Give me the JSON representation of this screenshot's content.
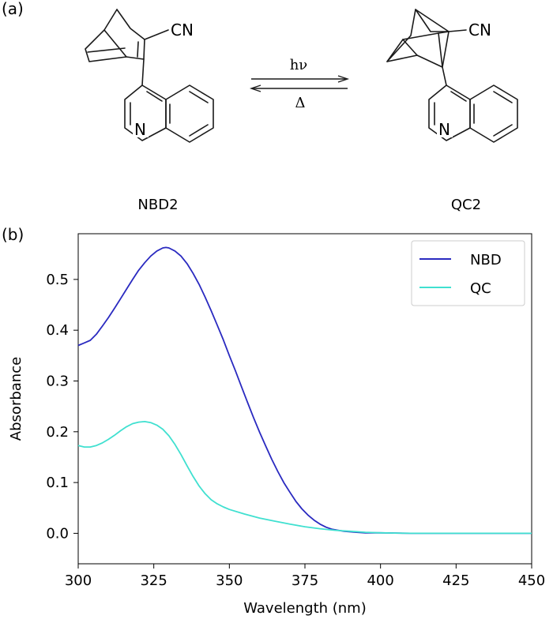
{
  "panels": {
    "a_label": "(a)",
    "b_label": "(b)"
  },
  "scheme": {
    "reactant": {
      "name": "NBD2",
      "cn": "CN",
      "n": "N"
    },
    "product": {
      "name": "QC2",
      "cn": "CN",
      "n": "N"
    },
    "forward_label": "hν",
    "reverse_label": "Δ"
  },
  "chart_data": {
    "type": "line",
    "title": "",
    "xlabel": "Wavelength (nm)",
    "ylabel": "Absorbance",
    "xlim": [
      300,
      450
    ],
    "ylim": [
      -0.06,
      0.59
    ],
    "xticks": [
      300,
      325,
      350,
      375,
      400,
      425,
      450
    ],
    "yticks": [
      0.0,
      0.1,
      0.2,
      0.3,
      0.4,
      0.5
    ],
    "ytick_labels": [
      "0.0",
      "0.1",
      "0.2",
      "0.3",
      "0.4",
      "0.5"
    ],
    "grid": false,
    "legend_position": "top-right",
    "series": [
      {
        "name": "NBD",
        "color": "#2a2ac0",
        "x": [
          300,
          302,
          304,
          306,
          308,
          310,
          312,
          314,
          316,
          318,
          320,
          322,
          324,
          326,
          328,
          329,
          330,
          332,
          334,
          336,
          338,
          340,
          342,
          344,
          346,
          348,
          350,
          352,
          354,
          356,
          358,
          360,
          362,
          364,
          366,
          368,
          370,
          372,
          374,
          376,
          378,
          380,
          382,
          384,
          386,
          388,
          390,
          392,
          395,
          400,
          410,
          420,
          430,
          440,
          450
        ],
        "y": [
          0.37,
          0.375,
          0.38,
          0.392,
          0.408,
          0.425,
          0.443,
          0.462,
          0.481,
          0.5,
          0.518,
          0.533,
          0.546,
          0.556,
          0.562,
          0.563,
          0.562,
          0.556,
          0.546,
          0.531,
          0.512,
          0.49,
          0.465,
          0.438,
          0.41,
          0.381,
          0.35,
          0.32,
          0.289,
          0.258,
          0.228,
          0.199,
          0.172,
          0.146,
          0.122,
          0.1,
          0.081,
          0.063,
          0.048,
          0.036,
          0.026,
          0.018,
          0.012,
          0.008,
          0.006,
          0.004,
          0.003,
          0.002,
          0.001,
          0.001,
          0.0,
          0.0,
          0.0,
          0.0,
          0.0
        ]
      },
      {
        "name": "QC",
        "color": "#40e0d0",
        "x": [
          300,
          302,
          304,
          306,
          308,
          310,
          312,
          314,
          316,
          318,
          320,
          322,
          324,
          326,
          328,
          330,
          332,
          334,
          336,
          338,
          340,
          342,
          344,
          346,
          348,
          350,
          355,
          360,
          365,
          370,
          375,
          380,
          385,
          390,
          395,
          400,
          410,
          420,
          430,
          440,
          450
        ],
        "y": [
          0.173,
          0.17,
          0.17,
          0.173,
          0.178,
          0.185,
          0.193,
          0.202,
          0.21,
          0.216,
          0.219,
          0.22,
          0.218,
          0.213,
          0.205,
          0.192,
          0.175,
          0.155,
          0.133,
          0.112,
          0.093,
          0.078,
          0.066,
          0.058,
          0.052,
          0.047,
          0.038,
          0.03,
          0.024,
          0.018,
          0.013,
          0.009,
          0.006,
          0.004,
          0.002,
          0.001,
          0.0,
          0.0,
          0.0,
          0.0,
          0.0
        ]
      }
    ]
  }
}
